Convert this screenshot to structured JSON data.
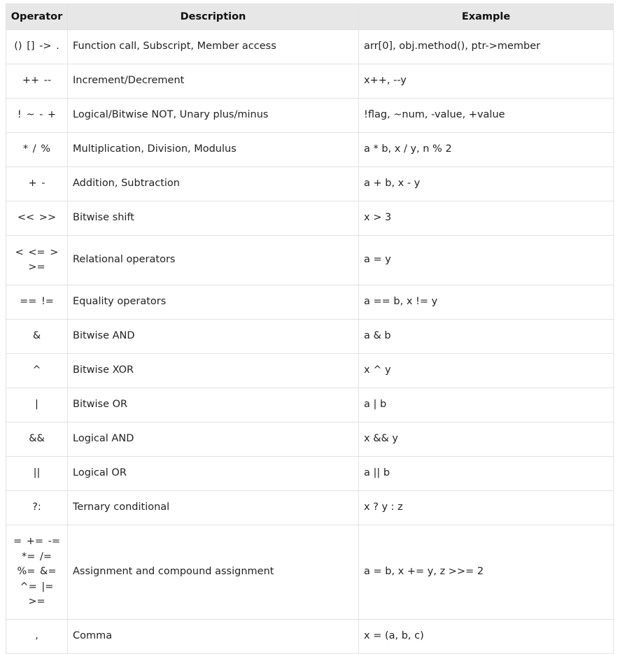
{
  "table": {
    "headers": [
      "Operator",
      "Description",
      "Example"
    ],
    "rows": [
      {
        "op": "() [] -> .",
        "desc": "Function call, Subscript, Member access",
        "ex": "arr[0], obj.method(), ptr->member"
      },
      {
        "op": "++ --",
        "desc": "Increment/Decrement",
        "ex": "x++, --y"
      },
      {
        "op": "! ~ - +",
        "desc": "Logical/Bitwise NOT, Unary plus/minus",
        "ex": "!flag, ~num, -value, +value"
      },
      {
        "op": "* / %",
        "desc": "Multiplication, Division, Modulus",
        "ex": "a * b, x / y, n % 2"
      },
      {
        "op": "+ -",
        "desc": "Addition, Subtraction",
        "ex": "a + b, x - y"
      },
      {
        "op": "<< >>",
        "desc": "Bitwise shift",
        "ex": "x > 3"
      },
      {
        "op": "< <= > >=",
        "desc": "Relational operators",
        "ex": "a = y"
      },
      {
        "op": "== !=",
        "desc": "Equality operators",
        "ex": "a == b, x != y"
      },
      {
        "op": "&",
        "desc": "Bitwise AND",
        "ex": "a & b"
      },
      {
        "op": "^",
        "desc": "Bitwise XOR",
        "ex": "x ^ y"
      },
      {
        "op": "|",
        "desc": "Bitwise OR",
        "ex": "a | b"
      },
      {
        "op": "&&",
        "desc": "Logical AND",
        "ex": "x && y"
      },
      {
        "op": "||",
        "desc": "Logical OR",
        "ex": "a || b"
      },
      {
        "op": "?:",
        "desc": "Ternary conditional",
        "ex": "x ? y : z"
      },
      {
        "op": "= += -= *= /= %= &= ^= |= >=",
        "desc": "Assignment and compound assignment",
        "ex": "a = b, x += y, z >>= 2"
      },
      {
        "op": ",",
        "desc": "Comma",
        "ex": "x = (a, b, c)"
      }
    ]
  }
}
